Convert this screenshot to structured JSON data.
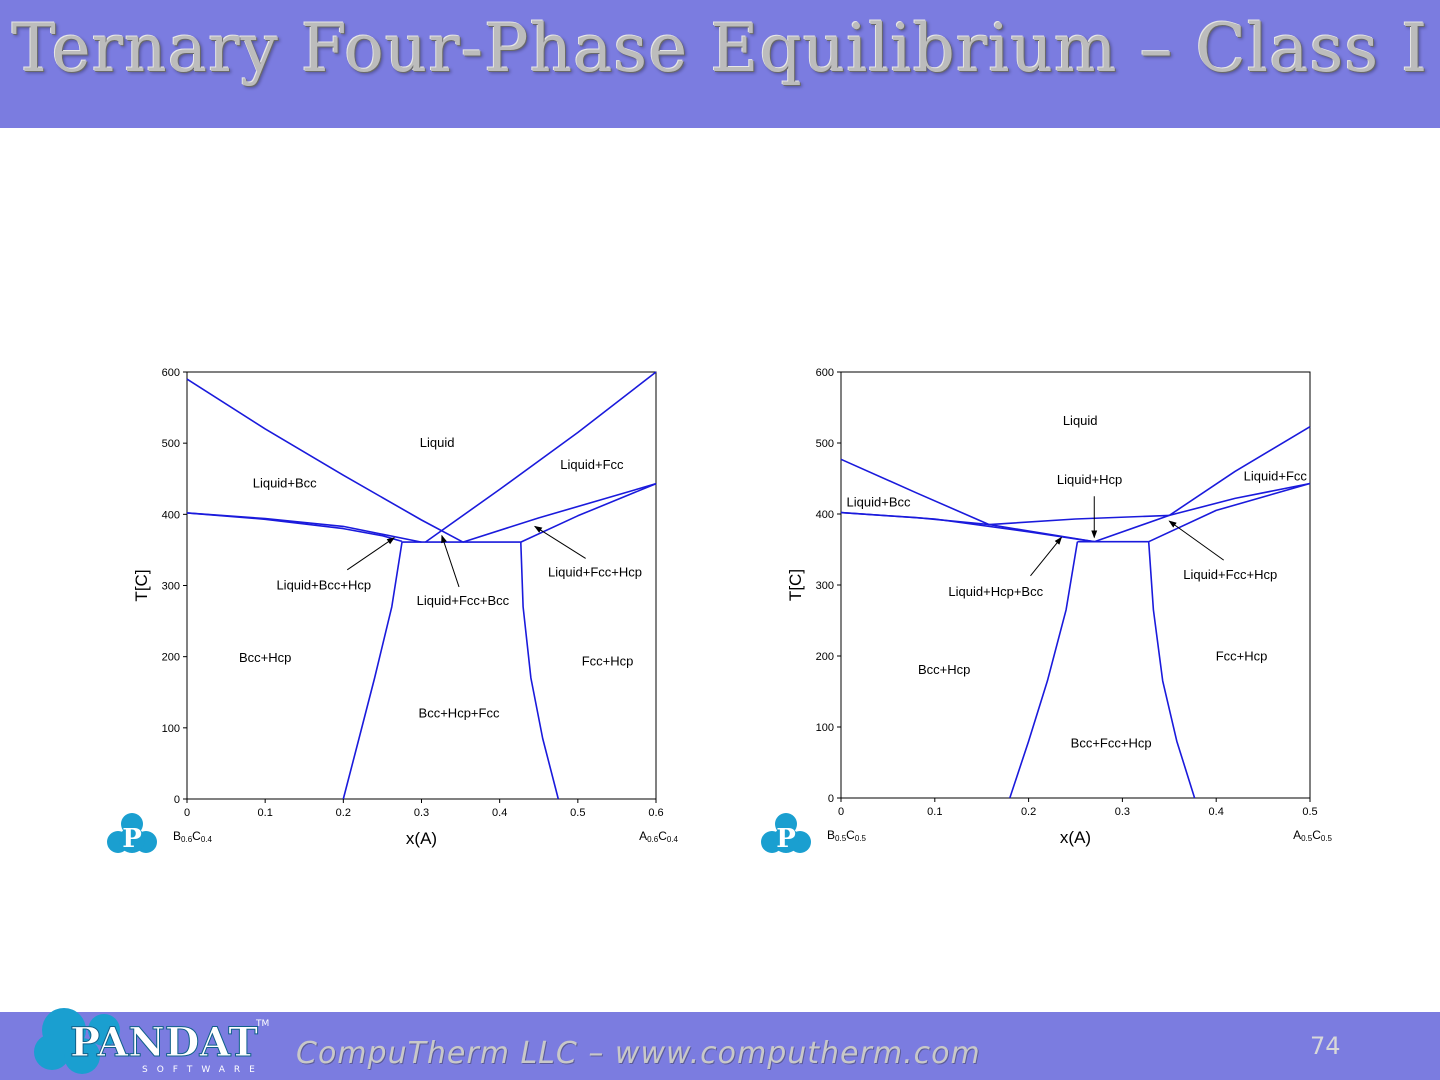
{
  "slide": {
    "title": "Ternary Four-Phase Equilibrium – Class I",
    "footer": "CompuTherm LLC – www.computherm.com",
    "page_number": "74",
    "logo_text": "PANDAT",
    "logo_tm": "TM",
    "logo_sub": "SOFTWARE",
    "logo_p": "P",
    "band_color": "#7b7ce0"
  },
  "chart_data": [
    {
      "type": "line",
      "xlabel": "x(A)",
      "ylabel": "T[C]",
      "xlim": [
        0,
        0.6
      ],
      "ylim": [
        0,
        600
      ],
      "xticks": [
        "0",
        "0.1",
        "0.2",
        "0.3",
        "0.4",
        "0.5",
        "0.6"
      ],
      "yticks": [
        "0",
        "100",
        "200",
        "300",
        "400",
        "500",
        "600"
      ],
      "left_end_label": {
        "a": "B",
        "a_sub": "0.6",
        "b": "C",
        "b_sub": "0.4"
      },
      "right_end_label": {
        "a": "A",
        "a_sub": "0.6",
        "b": "C",
        "b_sub": "0.4"
      },
      "line_color": "#1a1adc",
      "series": [
        {
          "values": [
            [
              0,
              590
            ],
            [
              0.1,
              520
            ],
            [
              0.2,
              455
            ],
            [
              0.3,
              392
            ],
            [
              0.353,
              361
            ]
          ]
        },
        {
          "values": [
            [
              0.305,
              361
            ],
            [
              0.4,
              435
            ],
            [
              0.5,
              515
            ],
            [
              0.6,
              600
            ]
          ]
        },
        {
          "values": [
            [
              0,
              402
            ],
            [
              0.1,
              394
            ],
            [
              0.2,
              383
            ],
            [
              0.3,
              361
            ]
          ]
        },
        {
          "values": [
            [
              0,
              402
            ],
            [
              0.1,
              393
            ],
            [
              0.2,
              380
            ],
            [
              0.25,
              370
            ],
            [
              0.275,
              362
            ]
          ]
        },
        {
          "values": [
            [
              0.353,
              361
            ],
            [
              0.45,
              395
            ],
            [
              0.55,
              427
            ],
            [
              0.6,
              443
            ]
          ]
        },
        {
          "values": [
            [
              0.427,
              361
            ],
            [
              0.5,
              398
            ],
            [
              0.6,
              443
            ]
          ]
        },
        {
          "values": [
            [
              0.275,
              361
            ],
            [
              0.427,
              361
            ]
          ]
        },
        {
          "values": [
            [
              0.275,
              361
            ],
            [
              0.262,
              270
            ],
            [
              0.24,
              170
            ],
            [
              0.22,
              85
            ],
            [
              0.2,
              0
            ]
          ]
        },
        {
          "values": [
            [
              0.427,
              361
            ],
            [
              0.43,
              270
            ],
            [
              0.44,
              170
            ],
            [
              0.455,
              85
            ],
            [
              0.475,
              0
            ]
          ]
        }
      ],
      "annotations": [
        {
          "text": "Liquid",
          "x": 0.32,
          "y": 500
        },
        {
          "text": "Liquid+Bcc",
          "x": 0.125,
          "y": 443
        },
        {
          "text": "Liquid+Fcc",
          "x": 0.518,
          "y": 469
        },
        {
          "text": "Liquid+Bcc+Hcp",
          "x": 0.175,
          "y": 300,
          "arrow_to": [
            0.265,
            367
          ],
          "arrow_from": [
            0.205,
            322
          ]
        },
        {
          "text": "Liquid+Fcc+Bcc",
          "x": 0.353,
          "y": 278,
          "arrow_to": [
            0.326,
            370
          ],
          "arrow_from": [
            0.348,
            298
          ]
        },
        {
          "text": "Liquid+Fcc+Hcp",
          "x": 0.522,
          "y": 318,
          "arrow_to": [
            0.445,
            383
          ],
          "arrow_from": [
            0.51,
            338
          ]
        },
        {
          "text": "Bcc+Hcp",
          "x": 0.1,
          "y": 198
        },
        {
          "text": "Fcc+Hcp",
          "x": 0.538,
          "y": 193
        },
        {
          "text": "Bcc+Hcp+Fcc",
          "x": 0.348,
          "y": 120
        }
      ]
    },
    {
      "type": "line",
      "xlabel": "x(A)",
      "ylabel": "T[C]",
      "xlim": [
        0,
        0.5
      ],
      "ylim": [
        0,
        600
      ],
      "xticks": [
        "0",
        "0.1",
        "0.2",
        "0.3",
        "0.4",
        "0.5"
      ],
      "yticks": [
        "0",
        "100",
        "200",
        "300",
        "400",
        "500",
        "600"
      ],
      "left_end_label": {
        "a": "B",
        "a_sub": "0.5",
        "b": "C",
        "b_sub": "0.5"
      },
      "right_end_label": {
        "a": "A",
        "a_sub": "0.5",
        "b": "C",
        "b_sub": "0.5"
      },
      "line_color": "#1a1adc",
      "series": [
        {
          "values": [
            [
              0,
              477
            ],
            [
              0.08,
              430
            ],
            [
              0.158,
              385
            ]
          ]
        },
        {
          "values": [
            [
              0,
              402
            ],
            [
              0.08,
              395
            ],
            [
              0.158,
              385
            ]
          ]
        },
        {
          "values": [
            [
              0.158,
              385
            ],
            [
              0.25,
              393
            ],
            [
              0.35,
              398
            ]
          ]
        },
        {
          "values": [
            [
              0,
              402
            ],
            [
              0.1,
              393
            ],
            [
              0.2,
              375
            ],
            [
              0.27,
              361
            ]
          ]
        },
        {
          "values": [
            [
              0.158,
              385
            ],
            [
              0.27,
              361
            ]
          ]
        },
        {
          "values": [
            [
              0.27,
              361
            ],
            [
              0.35,
              398
            ]
          ]
        },
        {
          "values": [
            [
              0.35,
              398
            ],
            [
              0.42,
              460
            ],
            [
              0.5,
              523
            ]
          ]
        },
        {
          "values": [
            [
              0.35,
              398
            ],
            [
              0.42,
              422
            ],
            [
              0.5,
              443
            ]
          ]
        },
        {
          "values": [
            [
              0.328,
              361
            ],
            [
              0.4,
              405
            ],
            [
              0.5,
              443
            ]
          ]
        },
        {
          "values": [
            [
              0.252,
              361
            ],
            [
              0.328,
              361
            ]
          ]
        },
        {
          "values": [
            [
              0.252,
              361
            ],
            [
              0.24,
              265
            ],
            [
              0.22,
              165
            ],
            [
              0.2,
              80
            ],
            [
              0.18,
              0
            ]
          ]
        },
        {
          "values": [
            [
              0.328,
              361
            ],
            [
              0.333,
              265
            ],
            [
              0.343,
              165
            ],
            [
              0.358,
              80
            ],
            [
              0.377,
              0
            ]
          ]
        }
      ],
      "annotations": [
        {
          "text": "Liquid",
          "x": 0.255,
          "y": 531
        },
        {
          "text": "Liquid+Hcp",
          "x": 0.265,
          "y": 448,
          "arrow_to": [
            0.27,
            367
          ],
          "arrow_from": [
            0.27,
            425
          ]
        },
        {
          "text": "Liquid+Fcc",
          "x": 0.463,
          "y": 453
        },
        {
          "text": "Liquid+Bcc",
          "x": 0.04,
          "y": 416
        },
        {
          "text": "Liquid+Hcp+Bcc",
          "x": 0.165,
          "y": 290,
          "arrow_to": [
            0.235,
            367
          ],
          "arrow_from": [
            0.202,
            313
          ]
        },
        {
          "text": "Liquid+Fcc+Hcp",
          "x": 0.415,
          "y": 314,
          "arrow_to": [
            0.35,
            390
          ],
          "arrow_from": [
            0.408,
            335
          ]
        },
        {
          "text": "Bcc+Hcp",
          "x": 0.11,
          "y": 180
        },
        {
          "text": "Fcc+Hcp",
          "x": 0.427,
          "y": 199
        },
        {
          "text": "Bcc+Fcc+Hcp",
          "x": 0.288,
          "y": 77
        }
      ]
    }
  ]
}
